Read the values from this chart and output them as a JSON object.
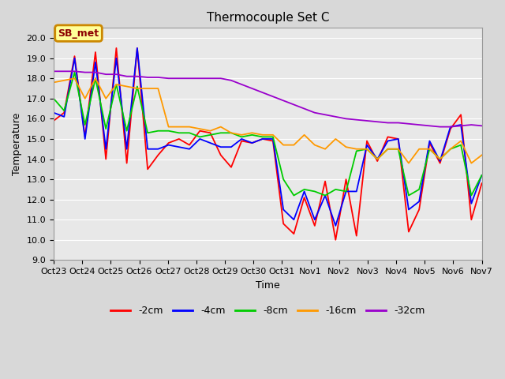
{
  "title": "Thermocouple Set C",
  "xlabel": "Time",
  "ylabel": "Temperature",
  "annotation": "SB_met",
  "ylim": [
    9.0,
    20.5
  ],
  "yticks": [
    9.0,
    10.0,
    11.0,
    12.0,
    13.0,
    14.0,
    15.0,
    16.0,
    17.0,
    18.0,
    19.0,
    20.0
  ],
  "xtick_labels": [
    "Oct 23",
    "Oct 24",
    "Oct 25",
    "Oct 26",
    "Oct 27",
    "Oct 28",
    "Oct 29",
    "Oct 30",
    "Oct 31",
    "Nov 1",
    "Nov 2",
    "Nov 3",
    "Nov 4",
    "Nov 5",
    "Nov 6",
    "Nov 7"
  ],
  "colors": {
    "-2cm": "#ff0000",
    "-4cm": "#0000ff",
    "-8cm": "#00cc00",
    "-16cm": "#ff9900",
    "-32cm": "#9900cc"
  },
  "series_x": {
    "-2cm": [
      0,
      0.4,
      1,
      1.5,
      2,
      2.5,
      3,
      3.5,
      4,
      4.5,
      5,
      5.3,
      5.6,
      6,
      6.3,
      6.6,
      7,
      7.5,
      8,
      8.3,
      8.7,
      9,
      9.5,
      10,
      10.5,
      11,
      11.5,
      12,
      12.5,
      13,
      13.5,
      14,
      14.5,
      15,
      15.5,
      16,
      16.5,
      17,
      17.5,
      18,
      18.5,
      19
    ],
    "-4cm": [
      0,
      0.4,
      1,
      1.5,
      2,
      2.5,
      3,
      3.5,
      4,
      4.5,
      5,
      5.3,
      5.6,
      6,
      6.3,
      6.6,
      7,
      7.5,
      8,
      8.3,
      8.7,
      9,
      9.5,
      10,
      10.5,
      11,
      11.5,
      12,
      12.5,
      13,
      13.5,
      14,
      14.5,
      15,
      15.5,
      16,
      16.5,
      17,
      17.5,
      18,
      18.5,
      19
    ],
    "-8cm": [
      0,
      0.4,
      1,
      1.5,
      2,
      2.5,
      3,
      3.5,
      4,
      4.5,
      5,
      5.3,
      5.6,
      6,
      6.3,
      6.6,
      7,
      7.5,
      8,
      8.3,
      8.7,
      9,
      9.5,
      10,
      10.5,
      11,
      11.5,
      12,
      12.5,
      13,
      13.5,
      14,
      14.5,
      15,
      15.5,
      16,
      16.5,
      17,
      17.5,
      18,
      18.5,
      19
    ],
    "-16cm": [
      0,
      0.4,
      1,
      1.5,
      2,
      2.5,
      3,
      3.5,
      4,
      4.5,
      5,
      5.3,
      5.6,
      6,
      6.3,
      6.6,
      7,
      7.5,
      8,
      8.3,
      8.7,
      9,
      9.5,
      10,
      10.5,
      11,
      11.5,
      12,
      12.5,
      13,
      13.5,
      14,
      14.5,
      15,
      15.5,
      16,
      16.5,
      17,
      17.5,
      18,
      18.5,
      19
    ],
    "-32cm": [
      0,
      0.4,
      1,
      1.5,
      2,
      2.5,
      3,
      3.5,
      4,
      4.5,
      5,
      5.3,
      5.6,
      6,
      6.3,
      6.6,
      7,
      7.5,
      8,
      8.3,
      8.7,
      9,
      9.5,
      10,
      10.5,
      11,
      11.5,
      12,
      12.5,
      13,
      13.5,
      14,
      14.5,
      15,
      15.5,
      16,
      16.5,
      17,
      17.5,
      18,
      18.5,
      19
    ]
  },
  "series": {
    "-2cm": [
      15.9,
      16.3,
      19.1,
      15.1,
      19.3,
      14.0,
      19.5,
      13.8,
      19.5,
      13.5,
      14.2,
      14.8,
      15.0,
      14.7,
      15.4,
      15.3,
      14.2,
      13.6,
      14.9,
      14.8,
      15.0,
      14.9,
      10.8,
      10.3,
      12.1,
      10.7,
      12.9,
      10.0,
      13.0,
      10.2,
      14.9,
      13.9,
      15.1,
      15.0,
      10.4,
      11.5,
      14.8,
      13.8,
      15.5,
      16.2,
      11.0,
      12.8
    ],
    "-4cm": [
      16.3,
      16.1,
      19.0,
      15.0,
      18.8,
      14.5,
      19.0,
      14.5,
      19.5,
      14.5,
      14.5,
      14.7,
      14.6,
      14.5,
      15.0,
      14.8,
      14.6,
      14.6,
      15.0,
      14.8,
      15.0,
      15.0,
      11.5,
      11.0,
      12.4,
      11.0,
      12.2,
      10.7,
      12.4,
      12.4,
      14.7,
      14.0,
      14.9,
      15.0,
      11.5,
      11.9,
      14.9,
      13.9,
      15.6,
      15.7,
      11.8,
      13.2
    ],
    "-8cm": [
      17.0,
      16.4,
      18.3,
      15.7,
      18.0,
      15.5,
      17.7,
      15.4,
      17.6,
      15.3,
      15.4,
      15.4,
      15.3,
      15.3,
      15.1,
      15.2,
      15.3,
      15.3,
      15.1,
      15.2,
      15.1,
      15.1,
      13.0,
      12.2,
      12.5,
      12.4,
      12.2,
      12.5,
      12.4,
      14.4,
      14.5,
      14.0,
      14.5,
      14.5,
      12.2,
      12.5,
      14.5,
      14.0,
      14.5,
      14.7,
      12.2,
      13.2
    ],
    "-16cm": [
      17.8,
      17.9,
      18.0,
      17.0,
      18.0,
      17.0,
      17.7,
      17.6,
      17.5,
      17.5,
      17.5,
      15.6,
      15.6,
      15.6,
      15.5,
      15.4,
      15.6,
      15.3,
      15.2,
      15.3,
      15.2,
      15.2,
      14.7,
      14.7,
      15.2,
      14.7,
      14.5,
      15.0,
      14.6,
      14.5,
      14.5,
      14.0,
      14.5,
      14.5,
      13.8,
      14.5,
      14.5,
      14.0,
      14.5,
      14.9,
      13.8,
      14.2
    ],
    "-32cm": [
      18.35,
      18.35,
      18.35,
      18.3,
      18.3,
      18.2,
      18.2,
      18.1,
      18.1,
      18.05,
      18.05,
      18.0,
      18.0,
      18.0,
      18.0,
      18.0,
      18.0,
      17.9,
      17.7,
      17.5,
      17.3,
      17.1,
      16.9,
      16.7,
      16.5,
      16.3,
      16.2,
      16.1,
      16.0,
      15.95,
      15.9,
      15.85,
      15.8,
      15.8,
      15.75,
      15.7,
      15.65,
      15.6,
      15.6,
      15.65,
      15.7,
      15.65
    ]
  },
  "fig_width": 6.4,
  "fig_height": 4.8,
  "dpi": 100,
  "background_color": "#d8d8d8",
  "plot_bg_color": "#e8e8e8",
  "grid_color": "#ffffff",
  "title_fontsize": 11,
  "axis_fontsize": 9,
  "tick_fontsize": 8
}
